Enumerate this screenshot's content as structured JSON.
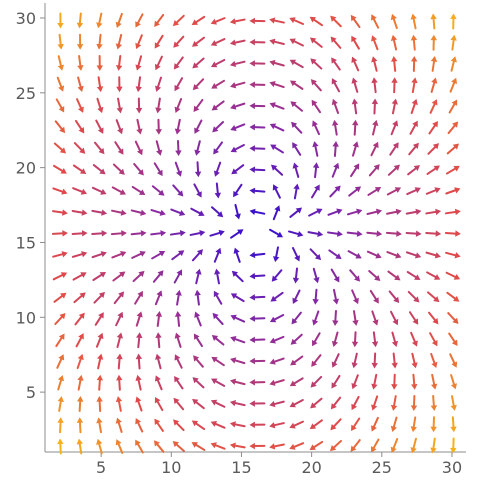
{
  "chart_data": {
    "type": "vector-field",
    "title": "",
    "xlabel": "",
    "ylabel": "",
    "xlim": [
      1,
      31
    ],
    "ylim": [
      1,
      31
    ],
    "xticks": [
      5,
      10,
      15,
      20,
      25,
      30
    ],
    "yticks": [
      5,
      10,
      15,
      20,
      25,
      30
    ],
    "x_tick_labels": [
      "5",
      "10",
      "15",
      "20",
      "25",
      "30"
    ],
    "y_tick_labels": [
      "5",
      "10",
      "15",
      "20",
      "25",
      "30"
    ],
    "grid": false,
    "arrow_grid": {
      "x_start": 2.1,
      "x_step": 1.4,
      "count_x": 21,
      "y_start": 1.4,
      "y_step": 1.42,
      "count_y": 21
    },
    "field": {
      "description_of_pattern": "dipole",
      "dipole_center": [
        16,
        16
      ],
      "dipole_axis": "horizontal"
    },
    "colors": {
      "near": "#2a0bd6",
      "mid": "#8a2aa0",
      "far": "#e04a4a",
      "outer": "#f7b21a"
    }
  }
}
